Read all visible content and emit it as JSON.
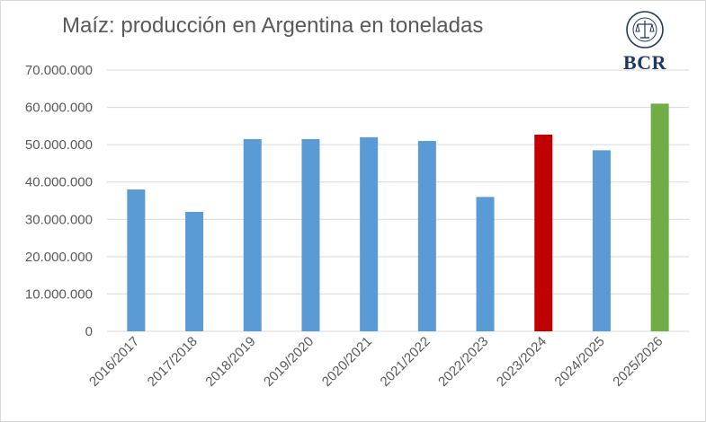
{
  "chart_data": {
    "type": "bar",
    "title": "Maíz: producción en Argentina en toneladas",
    "categories": [
      "2016/2017",
      "2017/2018",
      "2018/2019",
      "2019/2020",
      "2020/2021",
      "2021/2022",
      "2022/2023",
      "2023/2024",
      "2024/2025",
      "2025/2026"
    ],
    "values": [
      38000000,
      32000000,
      51500000,
      51500000,
      52000000,
      51000000,
      36000000,
      52700000,
      48500000,
      61000000
    ],
    "bar_colors": [
      "#5b9bd5",
      "#5b9bd5",
      "#5b9bd5",
      "#5b9bd5",
      "#5b9bd5",
      "#5b9bd5",
      "#5b9bd5",
      "#c00000",
      "#5b9bd5",
      "#70ad47"
    ],
    "ylim": [
      0,
      70000000
    ],
    "yticks": [
      0,
      10000000,
      20000000,
      30000000,
      40000000,
      50000000,
      60000000,
      70000000
    ],
    "ytick_labels": [
      "0",
      "10.000.000",
      "20.000.000",
      "30.000.000",
      "40.000.000",
      "50.000.000",
      "60.000.000",
      "70.000.000"
    ],
    "grid": true,
    "legend": false
  },
  "logo": {
    "text": "BCR"
  },
  "colors": {
    "axis_text": "#595959",
    "grid": "#d9d9d9",
    "logo": "#1f3864"
  }
}
